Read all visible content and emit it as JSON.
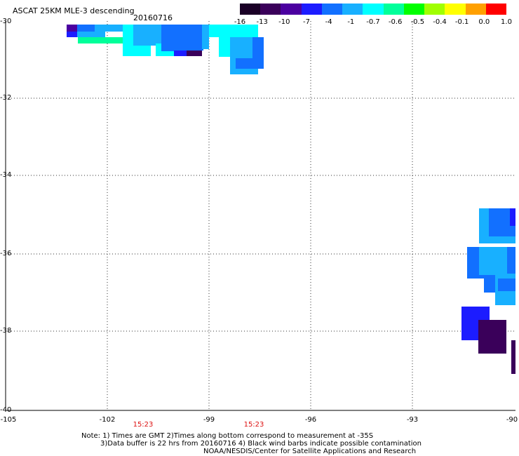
{
  "header": {
    "title": "ASCAT 25KM MLE-3 descending",
    "date": "20160716"
  },
  "colorbar": {
    "labels": [
      "-16",
      "-13",
      "-10",
      "-7",
      "-4",
      "-1",
      "-0.7",
      "-0.6",
      "-0.5",
      "-0.4",
      "-0.1",
      "0.0",
      "1.0"
    ],
    "colors": [
      "#1a0026",
      "#3a005a",
      "#4b00a0",
      "#1c1cff",
      "#1270ff",
      "#18b0ff",
      "#00ffff",
      "#00ff9a",
      "#00ff00",
      "#a0ff00",
      "#ffff00",
      "#ffa000",
      "#ff0000"
    ]
  },
  "axes": {
    "y_labels": [
      "-30",
      "-32",
      "-34",
      "-36",
      "-38",
      "-40"
    ],
    "x_labels": [
      "-105",
      "-102",
      "-99",
      "-96",
      "-93",
      "-90"
    ]
  },
  "times": [
    "15:23",
    "15:23"
  ],
  "notes": {
    "line1": "Note: 1) Times are GMT 2)Times along bottom correspond to measurement at -35S",
    "line2": "3)Data buffer is 22 hrs from 20160716 4) Black wind barbs indicate possible contamination",
    "line3": "NOAA/NESDIS/Center for Satellite Applications and Research"
  }
}
